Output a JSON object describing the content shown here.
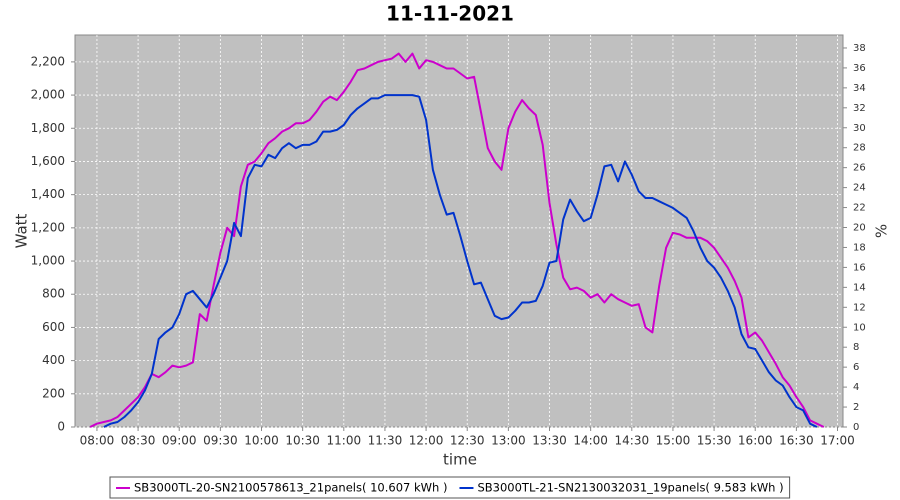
{
  "chart_data": {
    "type": "line",
    "title": "11-11-2021",
    "x_label": "time",
    "y_label": "Watt",
    "y2_label": "%",
    "x": [
      "07:55",
      "08:00",
      "08:05",
      "08:10",
      "08:15",
      "08:20",
      "08:25",
      "08:30",
      "08:35",
      "08:40",
      "08:45",
      "08:50",
      "08:55",
      "09:00",
      "09:05",
      "09:10",
      "09:15",
      "09:20",
      "09:25",
      "09:30",
      "09:35",
      "09:40",
      "09:45",
      "09:50",
      "09:55",
      "10:00",
      "10:05",
      "10:10",
      "10:15",
      "10:20",
      "10:25",
      "10:30",
      "10:35",
      "10:40",
      "10:45",
      "10:50",
      "10:55",
      "11:00",
      "11:05",
      "11:10",
      "11:15",
      "11:20",
      "11:25",
      "11:30",
      "11:35",
      "11:40",
      "11:45",
      "11:50",
      "11:55",
      "12:00",
      "12:05",
      "12:10",
      "12:15",
      "12:20",
      "12:25",
      "12:30",
      "12:35",
      "12:40",
      "12:45",
      "12:50",
      "12:55",
      "13:00",
      "13:05",
      "13:10",
      "13:15",
      "13:20",
      "13:25",
      "13:30",
      "13:35",
      "13:40",
      "13:45",
      "13:50",
      "13:55",
      "14:00",
      "14:05",
      "14:10",
      "14:15",
      "14:20",
      "14:25",
      "14:30",
      "14:35",
      "14:40",
      "14:45",
      "14:50",
      "14:55",
      "15:00",
      "15:05",
      "15:10",
      "15:15",
      "15:20",
      "15:25",
      "15:30",
      "15:35",
      "15:40",
      "15:45",
      "15:50",
      "15:55",
      "16:00",
      "16:05",
      "16:10",
      "16:15",
      "16:20",
      "16:25",
      "16:30",
      "16:35",
      "16:40",
      "16:45",
      "16:50"
    ],
    "series": [
      {
        "name": "SB3000TL-20-SN2100578613_21panels( 10.607 kWh )",
        "color": "#cc00cc",
        "values": [
          0,
          20,
          30,
          40,
          60,
          100,
          140,
          180,
          240,
          320,
          300,
          330,
          370,
          360,
          370,
          390,
          680,
          640,
          850,
          1050,
          1200,
          1150,
          1450,
          1580,
          1600,
          1650,
          1710,
          1740,
          1780,
          1800,
          1830,
          1830,
          1850,
          1900,
          1960,
          1990,
          1970,
          2020,
          2080,
          2150,
          2160,
          2180,
          2200,
          2210,
          2220,
          2250,
          2200,
          2250,
          2160,
          2210,
          2200,
          2180,
          2160,
          2160,
          2130,
          2100,
          2110,
          1900,
          1680,
          1600,
          1550,
          1800,
          1900,
          1970,
          1920,
          1880,
          1700,
          1350,
          1100,
          900,
          830,
          840,
          820,
          780,
          800,
          750,
          800,
          770,
          750,
          730,
          740,
          600,
          570,
          850,
          1080,
          1170,
          1160,
          1140,
          1140,
          1140,
          1120,
          1080,
          1020,
          960,
          880,
          780,
          540,
          570,
          520,
          450,
          380,
          300,
          250,
          180,
          120,
          40,
          20,
          0
        ]
      },
      {
        "name": "SB3000TL-21-SN2130032031_19panels( 9.583 kWh )",
        "color": "#0033cc",
        "values": [
          null,
          null,
          0,
          20,
          30,
          60,
          100,
          150,
          220,
          320,
          530,
          570,
          600,
          680,
          800,
          820,
          770,
          720,
          800,
          900,
          1000,
          1230,
          1150,
          1500,
          1580,
          1570,
          1640,
          1620,
          1680,
          1710,
          1680,
          1700,
          1700,
          1720,
          1780,
          1780,
          1790,
          1820,
          1880,
          1920,
          1950,
          1980,
          1980,
          2000,
          2000,
          2000,
          2000,
          2000,
          1990,
          1850,
          1550,
          1400,
          1280,
          1290,
          1150,
          1000,
          860,
          870,
          770,
          670,
          650,
          660,
          700,
          750,
          750,
          760,
          850,
          990,
          1000,
          1250,
          1370,
          1300,
          1240,
          1260,
          1400,
          1570,
          1580,
          1480,
          1600,
          1520,
          1420,
          1380,
          1380,
          1360,
          1340,
          1320,
          1290,
          1260,
          1180,
          1080,
          1000,
          960,
          900,
          820,
          720,
          560,
          480,
          470,
          400,
          330,
          280,
          250,
          180,
          120,
          100,
          20,
          0,
          null
        ]
      }
    ],
    "xlim": [
      "07:44",
      "17:04"
    ],
    "xticks": [
      "08:00",
      "08:30",
      "09:00",
      "09:30",
      "10:00",
      "10:30",
      "11:00",
      "11:30",
      "12:00",
      "12:30",
      "13:00",
      "13:30",
      "14:00",
      "14:30",
      "15:00",
      "15:30",
      "16:00",
      "16:30",
      "17:00"
    ],
    "ylim": [
      0,
      2362
    ],
    "yticks": [
      0,
      200,
      400,
      600,
      800,
      {
        "value": 1000,
        "label": "1,000"
      },
      {
        "value": 1200,
        "label": "1,200"
      },
      {
        "value": 1400,
        "label": "1,400"
      },
      {
        "value": 1600,
        "label": "1,600"
      },
      {
        "value": 1800,
        "label": "1,800"
      },
      {
        "value": 2000,
        "label": "2,000"
      },
      {
        "value": 2200,
        "label": "2,200"
      }
    ],
    "y2lim": [
      0,
      39.3
    ],
    "y2ticks": [
      0,
      2,
      4,
      6,
      8,
      10,
      12,
      14,
      16,
      18,
      20,
      22,
      24,
      26,
      28,
      30,
      32,
      34,
      36,
      38
    ],
    "grid": true,
    "legend": "bottom"
  }
}
